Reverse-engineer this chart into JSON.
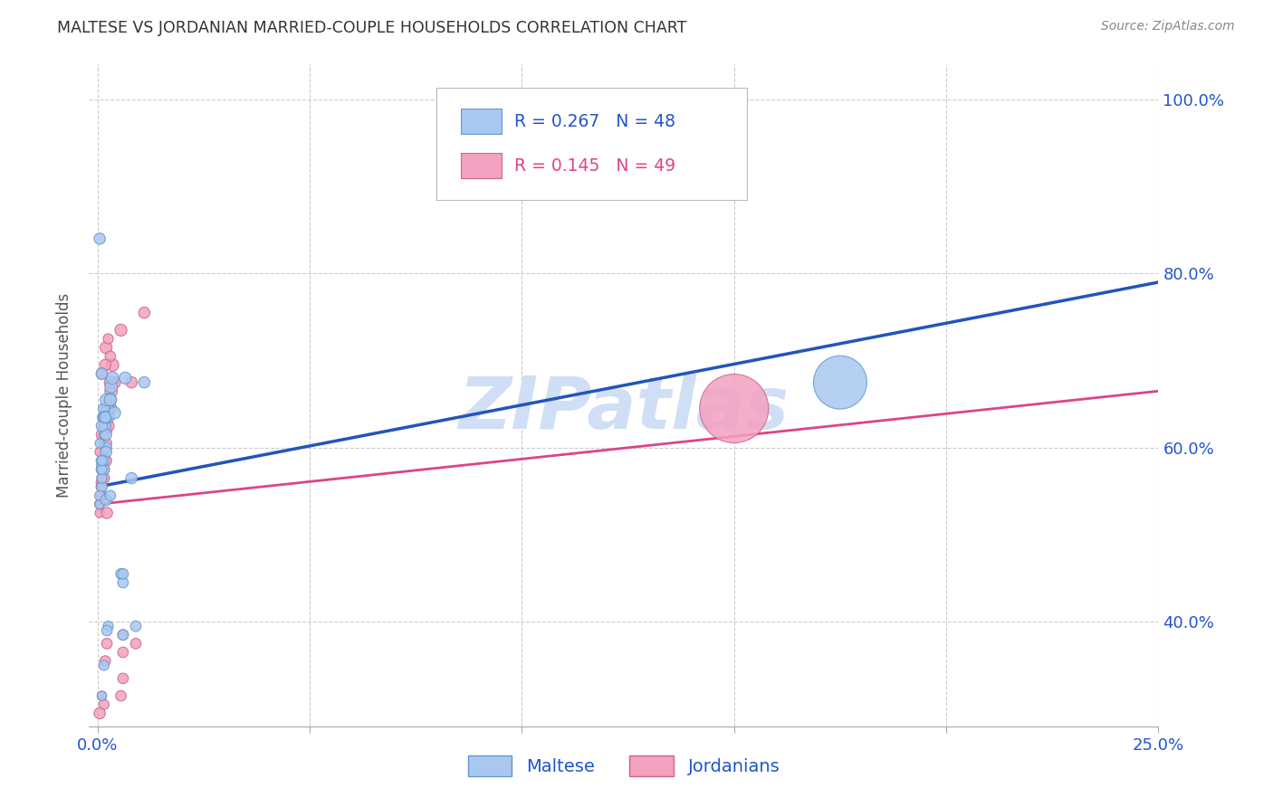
{
  "title": "MALTESE VS JORDANIAN MARRIED-COUPLE HOUSEHOLDS CORRELATION CHART",
  "source": "Source: ZipAtlas.com",
  "ylabel": "Married-couple Households",
  "xlim": [
    -0.002,
    0.25
  ],
  "ylim": [
    0.28,
    1.04
  ],
  "x_ticks": [
    0.0,
    0.05,
    0.1,
    0.15,
    0.2,
    0.25
  ],
  "x_tick_labels": [
    "0.0%",
    "",
    "",
    "",
    "",
    "25.0%"
  ],
  "y_ticks": [
    0.4,
    0.6,
    0.8,
    1.0
  ],
  "y_tick_labels": [
    "40.0%",
    "60.0%",
    "80.0%",
    "100.0%"
  ],
  "maltese_color": "#A8C8F0",
  "jordanian_color": "#F4A0C0",
  "maltese_edge_color": "#6699CC",
  "jordanian_edge_color": "#CC6688",
  "regression_blue_color": "#2255BB",
  "regression_pink_color": "#DD4488",
  "legend_r_blue": "R = 0.267",
  "legend_n_blue": "N = 48",
  "legend_r_pink": "R = 0.145",
  "legend_n_pink": "N = 49",
  "maltese_label": "Maltese",
  "jordanian_label": "Jordanians",
  "blue_line_x": [
    0.0,
    0.25
  ],
  "blue_line_y": [
    0.555,
    0.79
  ],
  "pink_line_x": [
    0.0,
    0.25
  ],
  "pink_line_y": [
    0.535,
    0.665
  ],
  "grid_color": "#CCCCCC",
  "background_color": "#FFFFFF",
  "title_color": "#333333",
  "axis_color": "#2255CC",
  "watermark_text": "ZIPatlas",
  "watermark_color": "#D0DFF5",
  "watermark_fontsize": 58,
  "maltese_x": [
    0.0008,
    0.0015,
    0.001,
    0.002,
    0.0012,
    0.0008,
    0.0018,
    0.0025,
    0.001,
    0.0015,
    0.002,
    0.0005,
    0.001,
    0.002,
    0.0015,
    0.0025,
    0.003,
    0.0015,
    0.001,
    0.0005,
    0.001,
    0.002,
    0.0005,
    0.0015,
    0.001,
    0.0032,
    0.0035,
    0.002,
    0.0055,
    0.006,
    0.0065,
    0.002,
    0.006,
    0.003,
    0.001,
    0.0015,
    0.0025,
    0.008,
    0.006,
    0.004,
    0.009,
    0.011,
    0.0005,
    0.0018,
    0.0022,
    0.003,
    0.001,
    0.175
  ],
  "maltese_y": [
    0.575,
    0.615,
    0.58,
    0.6,
    0.635,
    0.585,
    0.625,
    0.645,
    0.555,
    0.575,
    0.595,
    0.535,
    0.565,
    0.615,
    0.585,
    0.635,
    0.655,
    0.645,
    0.625,
    0.545,
    0.575,
    0.655,
    0.605,
    0.635,
    0.585,
    0.67,
    0.68,
    0.635,
    0.455,
    0.445,
    0.68,
    0.54,
    0.385,
    0.545,
    0.315,
    0.35,
    0.395,
    0.565,
    0.455,
    0.64,
    0.395,
    0.675,
    0.84,
    0.635,
    0.39,
    0.655,
    0.685,
    0.675
  ],
  "maltese_size": [
    60,
    60,
    70,
    80,
    70,
    60,
    80,
    90,
    70,
    80,
    80,
    55,
    65,
    80,
    70,
    90,
    100,
    80,
    80,
    65,
    65,
    90,
    55,
    80,
    65,
    100,
    100,
    90,
    70,
    70,
    90,
    80,
    70,
    70,
    55,
    65,
    65,
    80,
    70,
    90,
    70,
    80,
    80,
    80,
    70,
    90,
    80,
    1800
  ],
  "jordanian_x": [
    0.0008,
    0.0015,
    0.001,
    0.002,
    0.0012,
    0.0008,
    0.0018,
    0.0025,
    0.001,
    0.0015,
    0.002,
    0.0005,
    0.001,
    0.002,
    0.0015,
    0.0025,
    0.003,
    0.0015,
    0.001,
    0.0005,
    0.001,
    0.002,
    0.0005,
    0.0015,
    0.001,
    0.0032,
    0.0035,
    0.002,
    0.0055,
    0.006,
    0.0055,
    0.0022,
    0.006,
    0.003,
    0.001,
    0.0015,
    0.0025,
    0.008,
    0.006,
    0.004,
    0.009,
    0.011,
    0.0005,
    0.0018,
    0.0022,
    0.003,
    0.001,
    0.0018,
    0.15
  ],
  "jordanian_y": [
    0.56,
    0.59,
    0.575,
    0.62,
    0.61,
    0.555,
    0.6,
    0.64,
    0.545,
    0.565,
    0.585,
    0.525,
    0.555,
    0.605,
    0.575,
    0.625,
    0.645,
    0.635,
    0.615,
    0.535,
    0.565,
    0.645,
    0.595,
    0.625,
    0.575,
    0.665,
    0.695,
    0.715,
    0.315,
    0.335,
    0.735,
    0.525,
    0.365,
    0.705,
    0.315,
    0.305,
    0.725,
    0.675,
    0.385,
    0.675,
    0.375,
    0.755,
    0.295,
    0.695,
    0.375,
    0.675,
    0.685,
    0.355,
    0.645
  ],
  "jordanian_size": [
    60,
    60,
    70,
    80,
    70,
    60,
    80,
    90,
    70,
    80,
    80,
    55,
    65,
    80,
    70,
    90,
    100,
    80,
    80,
    65,
    65,
    90,
    55,
    80,
    65,
    100,
    100,
    90,
    70,
    70,
    90,
    80,
    70,
    70,
    55,
    65,
    65,
    80,
    70,
    90,
    70,
    80,
    80,
    80,
    70,
    90,
    80,
    70,
    3000
  ]
}
